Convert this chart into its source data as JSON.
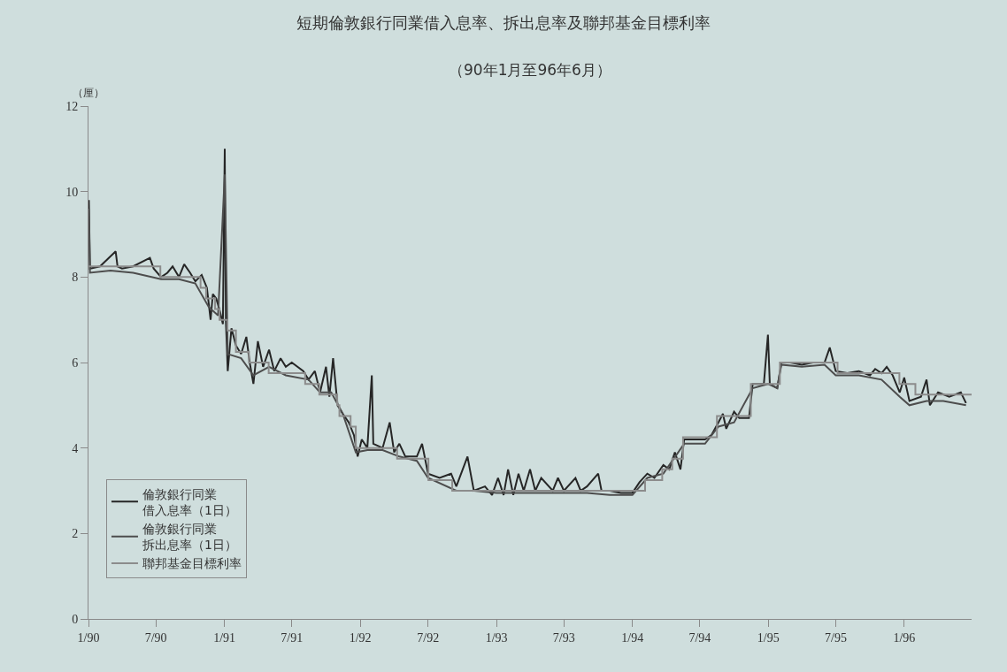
{
  "chart_data": {
    "type": "line",
    "title": "短期倫敦銀行同業借入息率、拆出息率及聯邦基金目標利率",
    "subtitle": "（90年1月至96年6月）",
    "ylabel": "（厘）",
    "xlim": [
      "1990-01-01",
      "1996-06-30"
    ],
    "ylim": [
      0,
      12
    ],
    "yticks": [
      0,
      2,
      4,
      6,
      8,
      10,
      12
    ],
    "xticks": [
      {
        "value": "1990-01-01",
        "label": "1/90"
      },
      {
        "value": "1990-07-01",
        "label": "7/90"
      },
      {
        "value": "1991-01-01",
        "label": "1/91"
      },
      {
        "value": "1991-07-01",
        "label": "7/91"
      },
      {
        "value": "1992-01-01",
        "label": "1/92"
      },
      {
        "value": "1992-07-01",
        "label": "7/92"
      },
      {
        "value": "1993-01-01",
        "label": "1/93"
      },
      {
        "value": "1993-07-01",
        "label": "7/93"
      },
      {
        "value": "1994-01-01",
        "label": "1/94"
      },
      {
        "value": "1994-07-01",
        "label": "7/94"
      },
      {
        "value": "1995-01-01",
        "label": "1/95"
      },
      {
        "value": "1995-07-01",
        "label": "7/95"
      },
      {
        "value": "1996-01-01",
        "label": "1/96"
      }
    ],
    "grid": false,
    "legend": "bottom left",
    "marker": "none",
    "line_style": "solid",
    "series": [
      {
        "name": "倫敦銀行同業借入息率（1日）",
        "color": "#262626",
        "x": [
          "1990-01-02",
          "1990-01-05",
          "1990-02-01",
          "1990-03-15",
          "1990-03-20",
          "1990-04-01",
          "1990-05-01",
          "1990-06-15",
          "1990-06-25",
          "1990-07-15",
          "1990-08-01",
          "1990-08-15",
          "1990-09-01",
          "1990-09-15",
          "1990-10-01",
          "1990-10-15",
          "1990-11-01",
          "1990-11-15",
          "1990-11-25",
          "1990-12-01",
          "1990-12-10",
          "1990-12-20",
          "1990-12-28",
          "1991-01-02",
          "1991-01-05",
          "1991-01-10",
          "1991-01-20",
          "1991-02-01",
          "1991-02-15",
          "1991-03-01",
          "1991-03-10",
          "1991-03-20",
          "1991-04-01",
          "1991-04-15",
          "1991-05-01",
          "1991-05-15",
          "1991-06-01",
          "1991-06-15",
          "1991-07-01",
          "1991-08-01",
          "1991-08-15",
          "1991-09-01",
          "1991-09-15",
          "1991-10-01",
          "1991-10-10",
          "1991-10-20",
          "1991-11-01",
          "1991-11-15",
          "1991-12-01",
          "1991-12-15",
          "1991-12-25",
          "1992-01-05",
          "1992-01-20",
          "1992-02-01",
          "1992-02-05",
          "1992-03-01",
          "1992-03-20",
          "1992-04-01",
          "1992-04-15",
          "1992-05-01",
          "1992-06-01",
          "1992-06-15",
          "1992-07-01",
          "1992-08-01",
          "1992-09-01",
          "1992-09-15",
          "1992-10-15",
          "1992-11-01",
          "1992-12-01",
          "1992-12-20",
          "1993-01-05",
          "1993-01-20",
          "1993-02-01",
          "1993-02-15",
          "1993-03-01",
          "1993-03-15",
          "1993-04-01",
          "1993-04-15",
          "1993-05-01",
          "1993-06-01",
          "1993-06-15",
          "1993-07-01",
          "1993-08-01",
          "1993-08-15",
          "1993-09-01",
          "1993-10-01",
          "1993-10-10",
          "1993-11-01",
          "1993-12-01",
          "1994-01-01",
          "1994-01-20",
          "1994-02-10",
          "1994-03-01",
          "1994-03-25",
          "1994-04-10",
          "1994-04-25",
          "1994-05-10",
          "1994-05-20",
          "1994-06-15",
          "1994-07-15",
          "1994-08-01",
          "1994-08-20",
          "1994-09-01",
          "1994-09-10",
          "1994-10-01",
          "1994-10-15",
          "1994-11-10",
          "1994-11-20",
          "1994-12-20",
          "1994-12-31",
          "1995-01-05",
          "1995-01-25",
          "1995-02-05",
          "1995-03-01",
          "1995-04-01",
          "1995-05-01",
          "1995-06-01",
          "1995-06-15",
          "1995-07-01",
          "1995-08-01",
          "1995-09-01",
          "1995-10-01",
          "1995-10-15",
          "1995-11-01",
          "1995-11-15",
          "1995-12-01",
          "1995-12-20",
          "1996-01-01",
          "1996-01-15",
          "1996-02-15",
          "1996-03-01",
          "1996-03-10",
          "1996-04-01",
          "1996-05-01",
          "1996-06-01",
          "1996-06-15"
        ],
        "values": [
          9.8,
          8.2,
          8.25,
          8.6,
          8.25,
          8.2,
          8.25,
          8.45,
          8.2,
          8.0,
          8.1,
          8.25,
          8.0,
          8.3,
          8.1,
          7.9,
          8.05,
          7.75,
          7.0,
          7.6,
          7.5,
          7.2,
          6.9,
          11.0,
          7.0,
          5.8,
          6.8,
          6.4,
          6.2,
          6.6,
          6.0,
          5.5,
          6.5,
          5.9,
          6.3,
          5.8,
          6.1,
          5.9,
          6.0,
          5.8,
          5.6,
          5.8,
          5.3,
          5.9,
          5.2,
          6.1,
          5.0,
          4.8,
          4.6,
          4.3,
          3.8,
          4.2,
          4.0,
          5.7,
          4.1,
          4.0,
          4.6,
          3.9,
          4.1,
          3.8,
          3.8,
          4.1,
          3.4,
          3.3,
          3.4,
          3.1,
          3.8,
          3.0,
          3.1,
          2.9,
          3.3,
          2.9,
          3.5,
          2.9,
          3.4,
          3.0,
          3.5,
          3.0,
          3.3,
          3.0,
          3.3,
          3.0,
          3.3,
          3.0,
          3.1,
          3.4,
          3.0,
          3.0,
          2.95,
          2.95,
          3.2,
          3.4,
          3.3,
          3.6,
          3.5,
          3.9,
          3.5,
          4.2,
          4.2,
          4.2,
          4.3,
          4.6,
          4.8,
          4.45,
          4.85,
          4.7,
          4.7,
          5.5,
          5.5,
          6.65,
          5.5,
          5.4,
          6.0,
          6.0,
          5.95,
          6.0,
          6.0,
          6.35,
          5.8,
          5.75,
          5.8,
          5.7,
          5.85,
          5.75,
          5.9,
          5.7,
          5.3,
          5.65,
          5.1,
          5.2,
          5.6,
          5.0,
          5.3,
          5.2,
          5.3,
          5.05
        ]
      },
      {
        "name": "倫敦銀行同業拆出息率（1日）",
        "color": "#4d4d4d",
        "x": [
          "1990-01-02",
          "1990-01-05",
          "1990-03-01",
          "1990-05-01",
          "1990-07-15",
          "1990-09-01",
          "1990-10-15",
          "1990-11-20",
          "1990-12-15",
          "1991-01-02",
          "1991-01-10",
          "1991-02-15",
          "1991-03-20",
          "1991-05-01",
          "1991-06-15",
          "1991-08-15",
          "1991-09-15",
          "1991-10-15",
          "1991-11-15",
          "1991-12-20",
          "1992-01-20",
          "1992-03-01",
          "1992-04-15",
          "1992-06-01",
          "1992-07-01",
          "1992-09-15",
          "1992-11-01",
          "1993-01-01",
          "1993-03-01",
          "1993-05-01",
          "1993-07-01",
          "1993-09-01",
          "1993-11-01",
          "1994-01-01",
          "1994-02-10",
          "1994-03-25",
          "1994-05-20",
          "1994-07-15",
          "1994-08-20",
          "1994-10-01",
          "1994-11-20",
          "1994-12-31",
          "1995-01-25",
          "1995-02-05",
          "1995-04-01",
          "1995-06-01",
          "1995-07-01",
          "1995-09-01",
          "1995-11-01",
          "1995-12-20",
          "1996-01-15",
          "1996-03-01",
          "1996-04-15",
          "1996-06-15"
        ],
        "values": [
          9.6,
          8.1,
          8.15,
          8.1,
          7.95,
          7.95,
          7.85,
          7.3,
          7.1,
          10.4,
          6.2,
          6.1,
          5.7,
          5.9,
          5.7,
          5.6,
          5.3,
          5.3,
          4.8,
          3.9,
          3.95,
          3.95,
          3.8,
          3.7,
          3.3,
          3.0,
          3.0,
          2.95,
          2.95,
          2.95,
          2.95,
          2.95,
          2.9,
          2.9,
          3.3,
          3.4,
          4.1,
          4.1,
          4.5,
          4.6,
          5.4,
          5.5,
          5.4,
          5.95,
          5.9,
          5.95,
          5.7,
          5.7,
          5.6,
          5.2,
          5.0,
          5.1,
          5.1,
          5.0
        ]
      },
      {
        "name": "聯邦基金目標利率",
        "color": "#8c8c8c",
        "type": "step",
        "x": [
          "1990-01-01",
          "1990-07-13",
          "1990-10-29",
          "1990-11-13",
          "1990-12-07",
          "1990-12-19",
          "1991-01-09",
          "1991-02-01",
          "1991-03-08",
          "1991-04-30",
          "1991-08-06",
          "1991-09-13",
          "1991-10-31",
          "1991-11-06",
          "1991-12-06",
          "1991-12-20",
          "1992-04-09",
          "1992-07-02",
          "1992-09-04",
          "1994-02-04",
          "1994-03-22",
          "1994-04-18",
          "1994-05-17",
          "1994-08-16",
          "1994-11-15",
          "1995-02-01",
          "1995-07-06",
          "1995-12-19",
          "1996-01-31",
          "1996-06-30"
        ],
        "values": [
          8.25,
          8.0,
          7.75,
          7.5,
          7.25,
          7.0,
          6.75,
          6.25,
          6.0,
          5.75,
          5.5,
          5.25,
          5.0,
          4.75,
          4.5,
          4.0,
          3.75,
          3.25,
          3.0,
          3.25,
          3.5,
          3.75,
          4.25,
          4.75,
          5.5,
          6.0,
          5.75,
          5.5,
          5.25,
          5.25
        ]
      }
    ]
  }
}
